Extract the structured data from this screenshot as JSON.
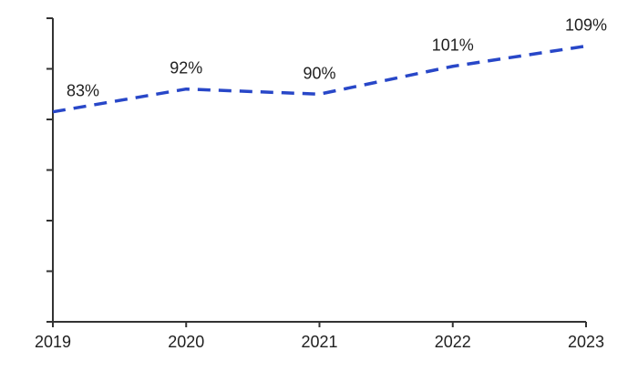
{
  "chart_data": {
    "type": "line",
    "title": "",
    "xlabel": "",
    "ylabel": "",
    "categories": [
      "2019",
      "2020",
      "2021",
      "2022",
      "2023"
    ],
    "series": [
      {
        "name": "percentage",
        "values": [
          83,
          92,
          90,
          101,
          109
        ],
        "point_labels": [
          "83%",
          "92%",
          "90%",
          "101%",
          "109%"
        ]
      }
    ],
    "ylim": [
      0,
      120
    ],
    "y_tick_step": 20,
    "y_tick_labels_visible": false,
    "grid": false,
    "legend_position": "none",
    "line_style": "dashed",
    "colors": {
      "line": "#2847c8",
      "axis": "#333333",
      "label_text": "#1f1f1f",
      "background": "#ffffff"
    }
  }
}
